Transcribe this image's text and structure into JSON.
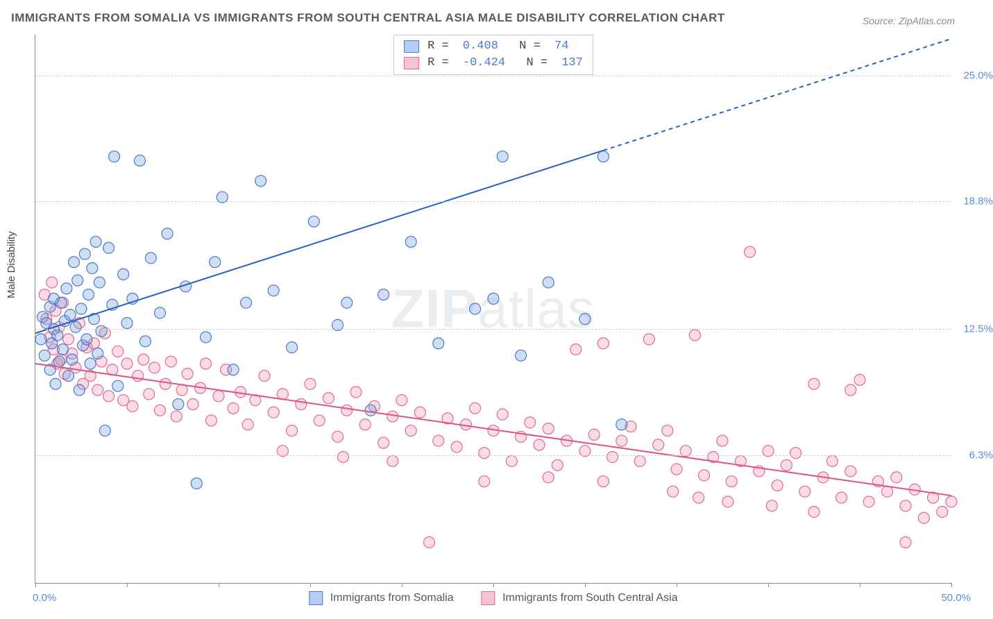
{
  "title": "IMMIGRANTS FROM SOMALIA VS IMMIGRANTS FROM SOUTH CENTRAL ASIA MALE DISABILITY CORRELATION CHART",
  "source": "Source: ZipAtlas.com",
  "y_axis_label": "Male Disability",
  "watermark_bold": "ZIP",
  "watermark_thin": "atlas",
  "chart": {
    "type": "scatter_with_regression",
    "xlim": [
      0,
      50
    ],
    "ylim": [
      0,
      27
    ],
    "x_min_label": "0.0%",
    "x_max_label": "50.0%",
    "y_ticks": [
      6.3,
      12.5,
      18.8,
      25.0
    ],
    "y_tick_labels": [
      "6.3%",
      "12.5%",
      "18.8%",
      "25.0%"
    ],
    "x_tick_positions": [
      0,
      5,
      10,
      15,
      20,
      25,
      30,
      35,
      40,
      45,
      50
    ],
    "grid_color": "#d0d0d0",
    "background_color": "#ffffff",
    "axis_color": "#888888",
    "tick_label_color": "#5b8dd6",
    "series": {
      "somalia": {
        "label": "Immigrants from Somalia",
        "fill_color": "rgba(120,160,220,0.35)",
        "stroke_color": "#4a7bc8",
        "swatch_fill": "#b5cdf0",
        "swatch_border": "#4a7bc8",
        "marker_radius": 8,
        "marker_stroke_width": 1.2,
        "R": "0.408",
        "N": "74",
        "regression": {
          "x1": 0,
          "y1": 12.3,
          "x2": 31,
          "y2": 21.3,
          "dash_x2": 50,
          "dash_y2": 26.8,
          "color": "#2a5fc0",
          "width": 2,
          "dash": "6,5"
        },
        "points": [
          [
            0.3,
            12.0
          ],
          [
            0.4,
            13.1
          ],
          [
            0.5,
            11.2
          ],
          [
            0.6,
            12.8
          ],
          [
            0.8,
            10.5
          ],
          [
            0.8,
            13.6
          ],
          [
            0.9,
            11.8
          ],
          [
            1.0,
            12.5
          ],
          [
            1.0,
            14.0
          ],
          [
            1.1,
            9.8
          ],
          [
            1.2,
            12.2
          ],
          [
            1.3,
            10.9
          ],
          [
            1.4,
            13.8
          ],
          [
            1.5,
            11.5
          ],
          [
            1.6,
            12.9
          ],
          [
            1.7,
            14.5
          ],
          [
            1.8,
            10.2
          ],
          [
            1.9,
            13.2
          ],
          [
            2.0,
            11.0
          ],
          [
            2.1,
            15.8
          ],
          [
            2.2,
            12.6
          ],
          [
            2.3,
            14.9
          ],
          [
            2.4,
            9.5
          ],
          [
            2.5,
            13.5
          ],
          [
            2.6,
            11.7
          ],
          [
            2.7,
            16.2
          ],
          [
            2.8,
            12.0
          ],
          [
            2.9,
            14.2
          ],
          [
            3.0,
            10.8
          ],
          [
            3.1,
            15.5
          ],
          [
            3.2,
            13.0
          ],
          [
            3.3,
            16.8
          ],
          [
            3.4,
            11.3
          ],
          [
            3.5,
            14.8
          ],
          [
            3.6,
            12.4
          ],
          [
            3.8,
            7.5
          ],
          [
            4.0,
            16.5
          ],
          [
            4.2,
            13.7
          ],
          [
            4.3,
            21.0
          ],
          [
            4.5,
            9.7
          ],
          [
            4.8,
            15.2
          ],
          [
            5.0,
            12.8
          ],
          [
            5.3,
            14.0
          ],
          [
            5.7,
            20.8
          ],
          [
            6.0,
            11.9
          ],
          [
            6.3,
            16.0
          ],
          [
            6.8,
            13.3
          ],
          [
            7.2,
            17.2
          ],
          [
            7.8,
            8.8
          ],
          [
            8.2,
            14.6
          ],
          [
            8.8,
            4.9
          ],
          [
            9.3,
            12.1
          ],
          [
            9.8,
            15.8
          ],
          [
            10.2,
            19.0
          ],
          [
            10.8,
            10.5
          ],
          [
            11.5,
            13.8
          ],
          [
            12.3,
            19.8
          ],
          [
            13.0,
            14.4
          ],
          [
            14.0,
            11.6
          ],
          [
            15.2,
            17.8
          ],
          [
            16.5,
            12.7
          ],
          [
            17.0,
            13.8
          ],
          [
            18.3,
            8.5
          ],
          [
            19.0,
            14.2
          ],
          [
            20.5,
            16.8
          ],
          [
            22.0,
            11.8
          ],
          [
            24.0,
            13.5
          ],
          [
            25.0,
            14.0
          ],
          [
            25.5,
            21.0
          ],
          [
            26.5,
            11.2
          ],
          [
            28.0,
            14.8
          ],
          [
            30.0,
            13.0
          ],
          [
            31.0,
            21.0
          ],
          [
            32.0,
            7.8
          ]
        ]
      },
      "south_central_asia": {
        "label": "Immigrants from South Central Asia",
        "fill_color": "rgba(240,140,170,0.30)",
        "stroke_color": "#e26a8f",
        "swatch_fill": "#f5c4d4",
        "swatch_border": "#e26a8f",
        "marker_radius": 8,
        "marker_stroke_width": 1.2,
        "R": "-0.424",
        "N": "137",
        "regression": {
          "x1": 0,
          "y1": 10.8,
          "x2": 50,
          "y2": 4.3,
          "color": "#e0537f",
          "width": 2
        },
        "points": [
          [
            0.5,
            14.2
          ],
          [
            0.6,
            13.0
          ],
          [
            0.8,
            12.1
          ],
          [
            0.9,
            14.8
          ],
          [
            1.0,
            11.5
          ],
          [
            1.1,
            13.4
          ],
          [
            1.2,
            10.8
          ],
          [
            1.3,
            12.6
          ],
          [
            1.4,
            11.0
          ],
          [
            1.5,
            13.8
          ],
          [
            1.6,
            10.3
          ],
          [
            1.8,
            12.0
          ],
          [
            2.0,
            11.3
          ],
          [
            2.2,
            10.6
          ],
          [
            2.4,
            12.8
          ],
          [
            2.6,
            9.8
          ],
          [
            2.8,
            11.6
          ],
          [
            3.0,
            10.2
          ],
          [
            3.2,
            11.8
          ],
          [
            3.4,
            9.5
          ],
          [
            3.6,
            10.9
          ],
          [
            3.8,
            12.3
          ],
          [
            4.0,
            9.2
          ],
          [
            4.2,
            10.5
          ],
          [
            4.5,
            11.4
          ],
          [
            4.8,
            9.0
          ],
          [
            5.0,
            10.8
          ],
          [
            5.3,
            8.7
          ],
          [
            5.6,
            10.2
          ],
          [
            5.9,
            11.0
          ],
          [
            6.2,
            9.3
          ],
          [
            6.5,
            10.6
          ],
          [
            6.8,
            8.5
          ],
          [
            7.1,
            9.8
          ],
          [
            7.4,
            10.9
          ],
          [
            7.7,
            8.2
          ],
          [
            8.0,
            9.5
          ],
          [
            8.3,
            10.3
          ],
          [
            8.6,
            8.8
          ],
          [
            9.0,
            9.6
          ],
          [
            9.3,
            10.8
          ],
          [
            9.6,
            8.0
          ],
          [
            10.0,
            9.2
          ],
          [
            10.4,
            10.5
          ],
          [
            10.8,
            8.6
          ],
          [
            11.2,
            9.4
          ],
          [
            11.6,
            7.8
          ],
          [
            12.0,
            9.0
          ],
          [
            12.5,
            10.2
          ],
          [
            13.0,
            8.4
          ],
          [
            13.5,
            9.3
          ],
          [
            14.0,
            7.5
          ],
          [
            14.5,
            8.8
          ],
          [
            15.0,
            9.8
          ],
          [
            15.5,
            8.0
          ],
          [
            16.0,
            9.1
          ],
          [
            16.5,
            7.2
          ],
          [
            17.0,
            8.5
          ],
          [
            17.5,
            9.4
          ],
          [
            18.0,
            7.8
          ],
          [
            18.5,
            8.7
          ],
          [
            19.0,
            6.9
          ],
          [
            19.5,
            8.2
          ],
          [
            20.0,
            9.0
          ],
          [
            20.5,
            7.5
          ],
          [
            21.0,
            8.4
          ],
          [
            21.5,
            2.0
          ],
          [
            22.0,
            7.0
          ],
          [
            22.5,
            8.1
          ],
          [
            23.0,
            6.7
          ],
          [
            23.5,
            7.8
          ],
          [
            24.0,
            8.6
          ],
          [
            24.5,
            6.4
          ],
          [
            25.0,
            7.5
          ],
          [
            25.5,
            8.3
          ],
          [
            26.0,
            6.0
          ],
          [
            26.5,
            7.2
          ],
          [
            27.0,
            7.9
          ],
          [
            27.5,
            6.8
          ],
          [
            28.0,
            7.6
          ],
          [
            28.5,
            5.8
          ],
          [
            29.0,
            7.0
          ],
          [
            29.5,
            11.5
          ],
          [
            30.0,
            6.5
          ],
          [
            30.5,
            7.3
          ],
          [
            31.0,
            11.8
          ],
          [
            31.5,
            6.2
          ],
          [
            32.0,
            7.0
          ],
          [
            32.5,
            7.7
          ],
          [
            33.0,
            6.0
          ],
          [
            33.5,
            12.0
          ],
          [
            34.0,
            6.8
          ],
          [
            34.5,
            7.5
          ],
          [
            35.0,
            5.6
          ],
          [
            35.5,
            6.5
          ],
          [
            36.0,
            12.2
          ],
          [
            36.5,
            5.3
          ],
          [
            37.0,
            6.2
          ],
          [
            37.5,
            7.0
          ],
          [
            38.0,
            5.0
          ],
          [
            38.5,
            6.0
          ],
          [
            39.0,
            16.3
          ],
          [
            39.5,
            5.5
          ],
          [
            40.0,
            6.5
          ],
          [
            40.5,
            4.8
          ],
          [
            41.0,
            5.8
          ],
          [
            41.5,
            6.4
          ],
          [
            42.0,
            4.5
          ],
          [
            42.5,
            9.8
          ],
          [
            43.0,
            5.2
          ],
          [
            43.5,
            6.0
          ],
          [
            44.0,
            4.2
          ],
          [
            44.5,
            5.5
          ],
          [
            45.0,
            10.0
          ],
          [
            45.5,
            4.0
          ],
          [
            46.0,
            5.0
          ],
          [
            46.5,
            4.5
          ],
          [
            47.0,
            5.2
          ],
          [
            47.5,
            3.8
          ],
          [
            48.0,
            4.6
          ],
          [
            48.5,
            3.2
          ],
          [
            49.0,
            4.2
          ],
          [
            49.5,
            3.5
          ],
          [
            50.0,
            4.0
          ],
          [
            34.8,
            4.5
          ],
          [
            36.2,
            4.2
          ],
          [
            37.8,
            4.0
          ],
          [
            40.2,
            3.8
          ],
          [
            42.5,
            3.5
          ],
          [
            44.5,
            9.5
          ],
          [
            47.5,
            2.0
          ],
          [
            24.5,
            5.0
          ],
          [
            28.0,
            5.2
          ],
          [
            31.0,
            5.0
          ],
          [
            19.5,
            6.0
          ],
          [
            16.8,
            6.2
          ],
          [
            13.5,
            6.5
          ]
        ]
      }
    },
    "stats_box": {
      "border_color": "#c8c8c8",
      "bg": "#ffffff",
      "font": "monospace"
    }
  }
}
